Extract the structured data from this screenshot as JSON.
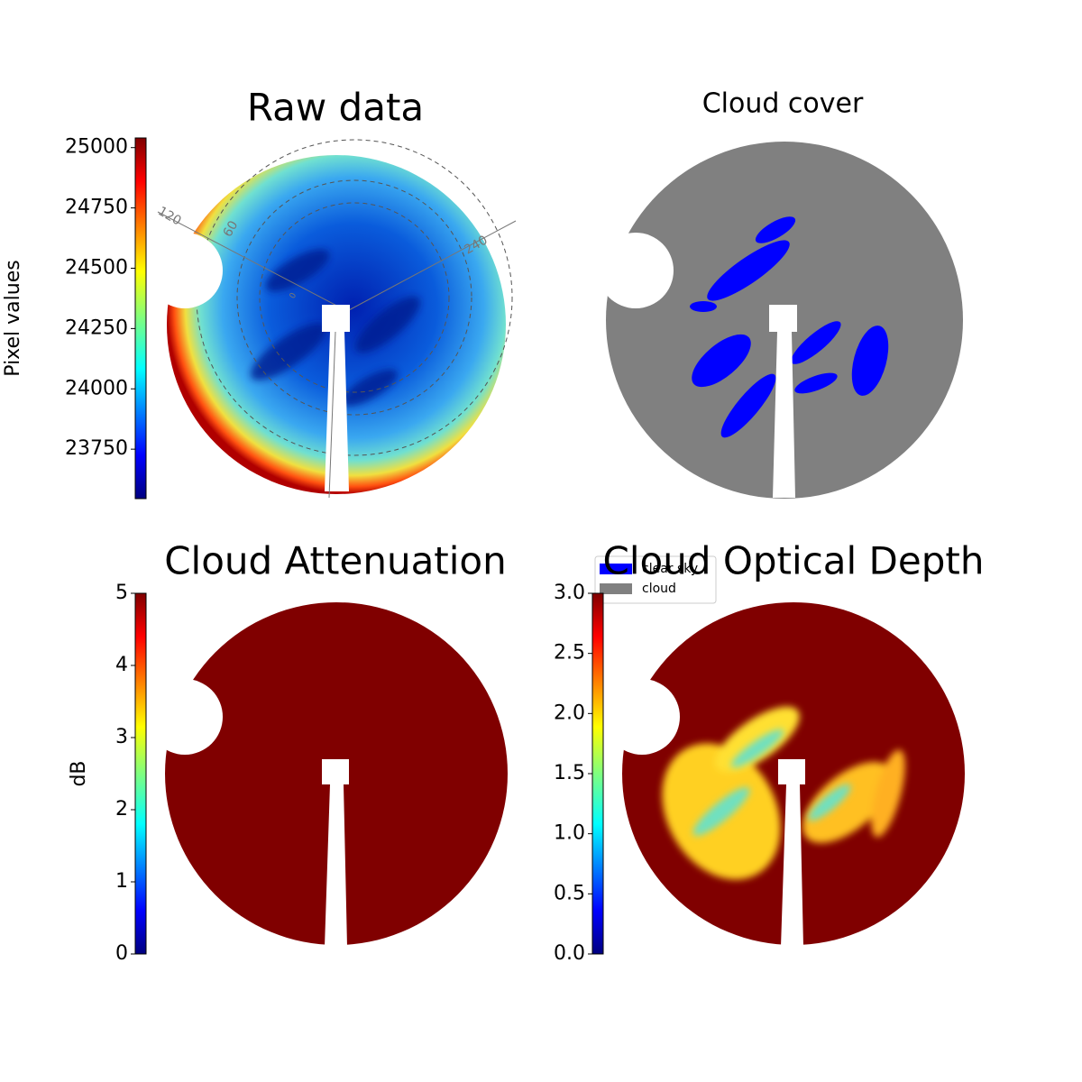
{
  "chart_data": [
    {
      "type": "image",
      "title": "Raw data",
      "colorbar_label": "Pixel values",
      "ylim": [
        23545,
        25040
      ],
      "yticks": [
        23750,
        24000,
        24250,
        24500,
        24750,
        25000
      ],
      "polar_labels": [
        "120",
        "60",
        "0",
        "240"
      ]
    },
    {
      "type": "image",
      "title": "Cloud cover",
      "series": [
        {
          "name": "clear sky",
          "color": "#0000ff"
        },
        {
          "name": "cloud",
          "color": "#808080"
        }
      ]
    },
    {
      "type": "image",
      "title": "Cloud Attenuation",
      "colorbar_label": "dB",
      "ylim": [
        0,
        5
      ],
      "yticks": [
        0,
        1,
        2,
        3,
        4,
        5
      ]
    },
    {
      "type": "image",
      "title": "Cloud Optical Depth",
      "ylim": [
        0,
        3
      ],
      "yticks": [
        {
          "value": 0,
          "label": "0.0"
        },
        {
          "value": 0.5,
          "label": "0.5"
        },
        {
          "value": 1,
          "label": "1.0"
        },
        {
          "value": 1.5,
          "label": "1.5"
        },
        {
          "value": 2,
          "label": "2.0"
        },
        {
          "value": 2.5,
          "label": "2.5"
        },
        {
          "value": 3,
          "label": "3.0"
        }
      ]
    }
  ]
}
